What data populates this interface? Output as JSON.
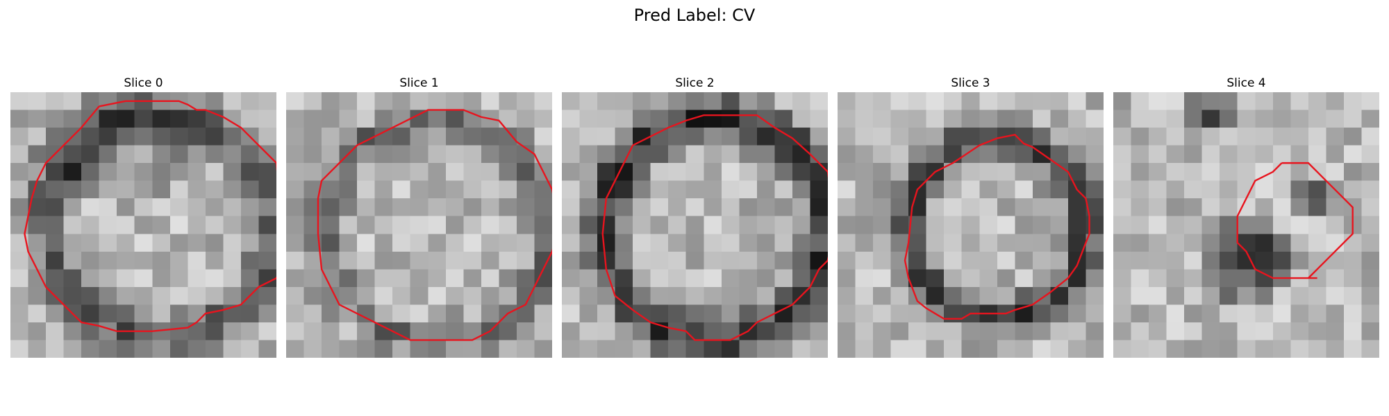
{
  "figure": {
    "title": "Pred Label: CV"
  },
  "slices": [
    {
      "title": "Slice 0",
      "contour_color": "#e8141e",
      "contour": [
        [
          5,
          0.8
        ],
        [
          6,
          0.6
        ],
        [
          6.5,
          0.5
        ],
        [
          9.5,
          0.5
        ],
        [
          10,
          0.7
        ],
        [
          10.5,
          1
        ],
        [
          11,
          1
        ],
        [
          12,
          1.4
        ],
        [
          13,
          2
        ],
        [
          14,
          3
        ],
        [
          15,
          4
        ],
        [
          15.2,
          6
        ],
        [
          15.5,
          7
        ],
        [
          16,
          8
        ],
        [
          16.3,
          8.4
        ],
        [
          16,
          9
        ],
        [
          15.5,
          9.5
        ],
        [
          15,
          10.5
        ],
        [
          14,
          11
        ],
        [
          13.5,
          11.5
        ],
        [
          13,
          12
        ],
        [
          12,
          12.3
        ],
        [
          11,
          12.5
        ],
        [
          10.5,
          13
        ],
        [
          10,
          13.3
        ],
        [
          8,
          13.5
        ],
        [
          6,
          13.5
        ],
        [
          5,
          13.2
        ],
        [
          4,
          13
        ],
        [
          3.5,
          12.5
        ],
        [
          3,
          12
        ],
        [
          2,
          11
        ],
        [
          1.5,
          10
        ],
        [
          1,
          9
        ],
        [
          0.8,
          8
        ],
        [
          1,
          7
        ],
        [
          1.2,
          6
        ],
        [
          1.5,
          5
        ],
        [
          2,
          4
        ],
        [
          3,
          3
        ],
        [
          4,
          2
        ],
        [
          5,
          0.8
        ]
      ]
    },
    {
      "title": "Slice 1",
      "contour_color": "#e8141e",
      "contour": [
        [
          6,
          2
        ],
        [
          7,
          1.5
        ],
        [
          8,
          1
        ],
        [
          10,
          1
        ],
        [
          10.5,
          1.2
        ],
        [
          11,
          1.4
        ],
        [
          12,
          1.6
        ],
        [
          12.5,
          2.2
        ],
        [
          13,
          2.8
        ],
        [
          14,
          3.5
        ],
        [
          14.5,
          4.5
        ],
        [
          15,
          5.5
        ],
        [
          15.2,
          6.5
        ],
        [
          15.3,
          8
        ],
        [
          15,
          9
        ],
        [
          14.5,
          10
        ],
        [
          14,
          11
        ],
        [
          13.5,
          12
        ],
        [
          12.5,
          12.5
        ],
        [
          12,
          13
        ],
        [
          11.5,
          13.5
        ],
        [
          10.5,
          14
        ],
        [
          7,
          14
        ],
        [
          6,
          13.5
        ],
        [
          5,
          13
        ],
        [
          4,
          12.5
        ],
        [
          3,
          12
        ],
        [
          2.5,
          11
        ],
        [
          2,
          10
        ],
        [
          1.8,
          8
        ],
        [
          1.8,
          6
        ],
        [
          2,
          5
        ],
        [
          3,
          4
        ],
        [
          4,
          3
        ],
        [
          5,
          2.5
        ],
        [
          6,
          2
        ]
      ]
    },
    {
      "title": "Slice 2",
      "contour_color": "#e8141e",
      "contour": [
        [
          6,
          2
        ],
        [
          7,
          1.6
        ],
        [
          8,
          1.3
        ],
        [
          11,
          1.3
        ],
        [
          12,
          2
        ],
        [
          13,
          2.6
        ],
        [
          14,
          3.5
        ],
        [
          15,
          4.5
        ],
        [
          15.2,
          6
        ],
        [
          15.3,
          8
        ],
        [
          15,
          9.5
        ],
        [
          14.5,
          10
        ],
        [
          14,
          11
        ],
        [
          13.5,
          11.5
        ],
        [
          13,
          12
        ],
        [
          12,
          12.5
        ],
        [
          11,
          13
        ],
        [
          10.5,
          13.5
        ],
        [
          9.5,
          14
        ],
        [
          7.5,
          14
        ],
        [
          7,
          13.5
        ],
        [
          6,
          13.3
        ],
        [
          5,
          13
        ],
        [
          4,
          12.3
        ],
        [
          3,
          11.5
        ],
        [
          2.5,
          10
        ],
        [
          2.3,
          8
        ],
        [
          2.5,
          6
        ],
        [
          3,
          5
        ],
        [
          3.5,
          4
        ],
        [
          4,
          3
        ],
        [
          5,
          2.5
        ],
        [
          6,
          2
        ]
      ]
    },
    {
      "title": "Slice 3",
      "contour_color": "#e8141e",
      "contour": [
        [
          9,
          2.6
        ],
        [
          10,
          2.4
        ],
        [
          10.5,
          2.9
        ],
        [
          11,
          3.1
        ],
        [
          12,
          3.8
        ],
        [
          13,
          4.5
        ],
        [
          13.5,
          5.5
        ],
        [
          14,
          6
        ],
        [
          14.2,
          7
        ],
        [
          14.2,
          8
        ],
        [
          14,
          8.5
        ],
        [
          13.5,
          9.8
        ],
        [
          13,
          10.5
        ],
        [
          12,
          11.3
        ],
        [
          11,
          12
        ],
        [
          10,
          12.3
        ],
        [
          9.5,
          12.5
        ],
        [
          7.5,
          12.5
        ],
        [
          7,
          12.8
        ],
        [
          6,
          12.8
        ],
        [
          5.5,
          12.5
        ],
        [
          5,
          12.2
        ],
        [
          4.5,
          11.8
        ],
        [
          4,
          10.5
        ],
        [
          3.8,
          9.5
        ],
        [
          4,
          8.5
        ],
        [
          4.2,
          6.5
        ],
        [
          4.5,
          5.5
        ],
        [
          5,
          5
        ],
        [
          5.5,
          4.5
        ],
        [
          6.5,
          4
        ],
        [
          8,
          3
        ],
        [
          9,
          2.6
        ]
      ]
    },
    {
      "title": "Slice 4",
      "contour_color": "#e8141e",
      "contour": [
        [
          9.5,
          4
        ],
        [
          11,
          4
        ],
        [
          12,
          5
        ],
        [
          13,
          6
        ],
        [
          13.5,
          6.5
        ],
        [
          13.5,
          8
        ],
        [
          13,
          8.5
        ],
        [
          12,
          9.5
        ],
        [
          11,
          10.5
        ],
        [
          11.5,
          10.5
        ],
        [
          9,
          10.5
        ],
        [
          8,
          10
        ],
        [
          7.5,
          9
        ],
        [
          7,
          8.5
        ],
        [
          7,
          7
        ],
        [
          7.5,
          6
        ],
        [
          8,
          5
        ],
        [
          9,
          4.5
        ],
        [
          9.5,
          4
        ]
      ]
    }
  ]
}
